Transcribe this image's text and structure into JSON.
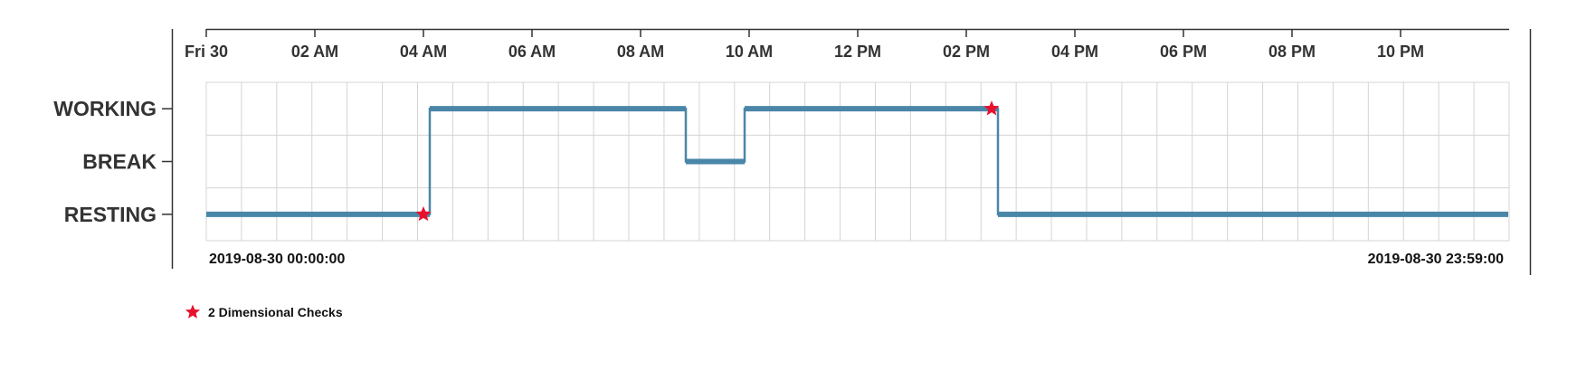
{
  "chart_data": {
    "type": "line",
    "subtype": "step",
    "x_axis": {
      "type": "time",
      "range": [
        "2019-08-30 00:00:00",
        "2019-08-30 23:59:00"
      ],
      "tick_labels": [
        "Fri 30",
        "02 AM",
        "04 AM",
        "06 AM",
        "08 AM",
        "10 AM",
        "12 PM",
        "02 PM",
        "04 PM",
        "06 PM",
        "08 PM",
        "10 PM"
      ],
      "tick_hours": [
        0,
        2,
        4,
        6,
        8,
        10,
        12,
        14,
        16,
        18,
        20,
        22
      ],
      "start_label": "2019-08-30 00:00:00",
      "end_label": "2019-08-30 23:59:00"
    },
    "y_axis": {
      "type": "categorical",
      "categories": [
        "WORKING",
        "BREAK",
        "RESTING"
      ]
    },
    "grid": true,
    "series": [
      {
        "color": "#4a86a8",
        "points": [
          {
            "time": "00:00",
            "state": "RESTING"
          },
          {
            "time": "04:07",
            "state": "WORKING"
          },
          {
            "time": "08:50",
            "state": "BREAK"
          },
          {
            "time": "09:55",
            "state": "WORKING"
          },
          {
            "time": "14:35",
            "state": "RESTING"
          },
          {
            "time": "23:59",
            "state": "RESTING"
          }
        ]
      }
    ],
    "markers": {
      "name": "2 Dimensional Checks",
      "symbol": "star",
      "color": "#e8112d",
      "points": [
        {
          "time": "04:00",
          "state": "RESTING"
        },
        {
          "time": "14:28",
          "state": "WORKING"
        }
      ]
    },
    "legend": {
      "position": "bottom-left",
      "items": [
        {
          "label": "2 Dimensional Checks",
          "icon": "star-icon",
          "color": "#e8112d"
        }
      ]
    }
  }
}
